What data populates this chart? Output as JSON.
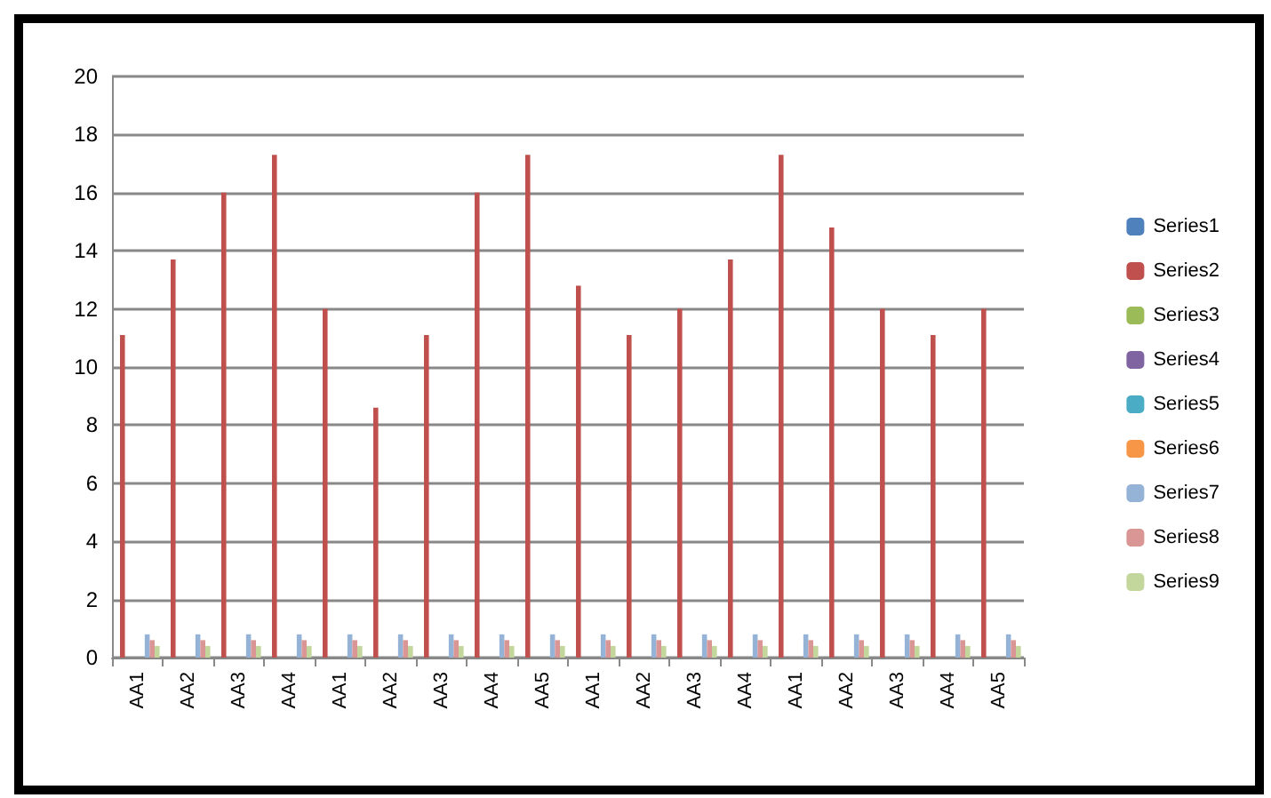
{
  "chart_data": {
    "type": "bar",
    "categories": [
      "AA1",
      "AA2",
      "AA3",
      "AA4",
      "AA1",
      "AA2",
      "AA3",
      "AA4",
      "AA5",
      "AA1",
      "AA2",
      "AA3",
      "AA4",
      "AA1",
      "AA2",
      "AA3",
      "AA4",
      "AA5"
    ],
    "series": [
      {
        "name": "Series1",
        "color": "#4f81bd",
        "values": [
          0,
          0,
          0,
          0,
          0,
          0,
          0,
          0,
          0,
          0,
          0,
          0,
          0,
          0,
          0,
          0,
          0,
          0
        ]
      },
      {
        "name": "Series2",
        "color": "#c0504d",
        "values": [
          11.1,
          13.7,
          16,
          17.3,
          12,
          8.6,
          11.1,
          16,
          17.3,
          12.8,
          11.1,
          12,
          13.7,
          17.3,
          14.8,
          12,
          11.1,
          12
        ]
      },
      {
        "name": "Series3",
        "color": "#9bbb59",
        "values": [
          0,
          0,
          0,
          0,
          0,
          0,
          0,
          0,
          0,
          0,
          0,
          0,
          0,
          0,
          0,
          0,
          0,
          0
        ]
      },
      {
        "name": "Series4",
        "color": "#8064a2",
        "values": [
          0,
          0,
          0,
          0,
          0,
          0,
          0,
          0,
          0,
          0,
          0,
          0,
          0,
          0,
          0,
          0,
          0,
          0
        ]
      },
      {
        "name": "Series5",
        "color": "#4bacc6",
        "values": [
          0,
          0,
          0,
          0,
          0,
          0,
          0,
          0,
          0,
          0,
          0,
          0,
          0,
          0,
          0,
          0,
          0,
          0
        ]
      },
      {
        "name": "Series6",
        "color": "#f79646",
        "values": [
          0,
          0,
          0,
          0,
          0,
          0,
          0,
          0,
          0,
          0,
          0,
          0,
          0,
          0,
          0,
          0,
          0,
          0
        ]
      },
      {
        "name": "Series7",
        "color": "#95b3d7",
        "values": [
          0.8,
          0.8,
          0.8,
          0.8,
          0.8,
          0.8,
          0.8,
          0.8,
          0.8,
          0.8,
          0.8,
          0.8,
          0.8,
          0.8,
          0.8,
          0.8,
          0.8,
          0.8
        ]
      },
      {
        "name": "Series8",
        "color": "#d99694",
        "values": [
          0.6,
          0.6,
          0.6,
          0.6,
          0.6,
          0.6,
          0.6,
          0.6,
          0.6,
          0.6,
          0.6,
          0.6,
          0.6,
          0.6,
          0.6,
          0.6,
          0.6,
          0.6
        ]
      },
      {
        "name": "Series9",
        "color": "#c3d69b",
        "values": [
          0.4,
          0.4,
          0.4,
          0.4,
          0.4,
          0.4,
          0.4,
          0.4,
          0.4,
          0.4,
          0.4,
          0.4,
          0.4,
          0.4,
          0.4,
          0.4,
          0.4,
          0.4
        ]
      }
    ],
    "ylim": [
      0,
      20
    ],
    "yticks": [
      0,
      2,
      4,
      6,
      8,
      10,
      12,
      14,
      16,
      18,
      20
    ],
    "grid": "y",
    "legend": "right"
  }
}
